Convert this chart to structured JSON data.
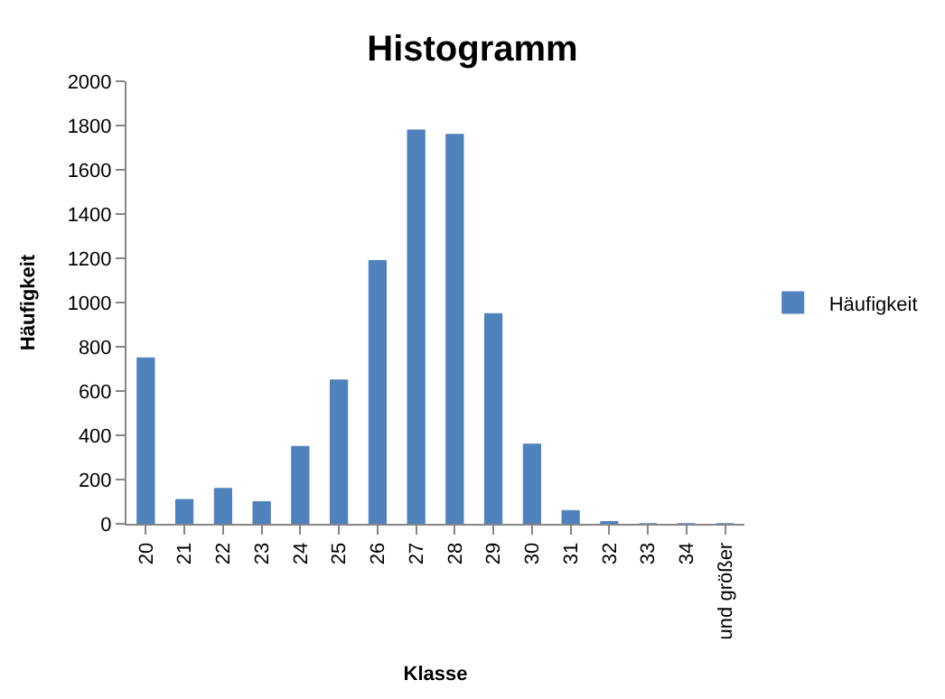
{
  "chart_data": {
    "type": "bar",
    "title": "Histogramm",
    "xlabel": "Klasse",
    "ylabel": "Häufigkeit",
    "categories": [
      "20",
      "21",
      "22",
      "23",
      "24",
      "25",
      "26",
      "27",
      "28",
      "29",
      "30",
      "31",
      "32",
      "33",
      "34",
      "und größer"
    ],
    "series": [
      {
        "name": "Häufigkeit",
        "color": "#4f81bd",
        "values": [
          750,
          110,
          160,
          100,
          350,
          650,
          1190,
          1780,
          1760,
          950,
          360,
          60,
          10,
          0,
          0,
          0
        ]
      }
    ],
    "ylim": [
      0,
      2000
    ],
    "yticks": [
      0,
      200,
      400,
      600,
      800,
      1000,
      1200,
      1400,
      1600,
      1800,
      2000
    ],
    "grid": false,
    "legend": "right"
  }
}
